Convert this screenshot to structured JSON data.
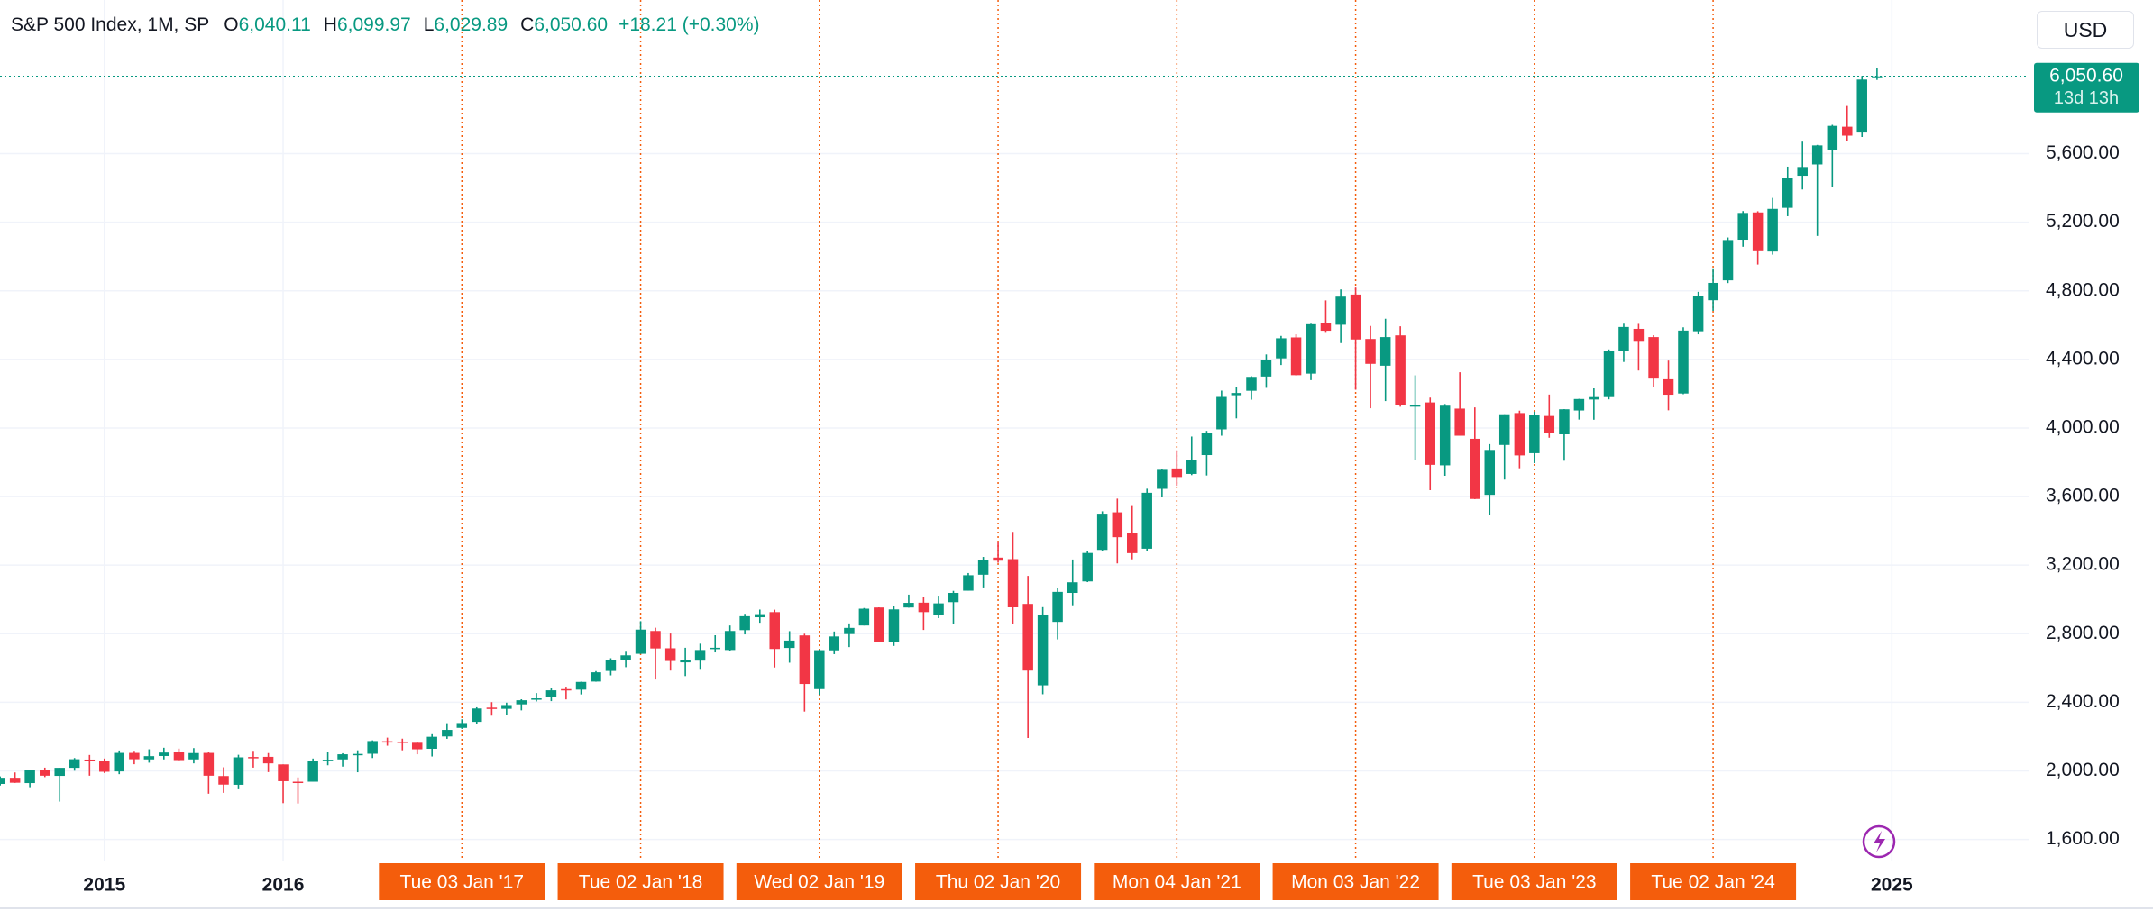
{
  "chart_data": {
    "type": "candlestick",
    "title": "S&P 500 Index, 1M, SP",
    "ohlc_labels": [
      {
        "key": "O",
        "value": "6,040.11"
      },
      {
        "key": "H",
        "value": "6,099.97"
      },
      {
        "key": "L",
        "value": "6,029.89"
      },
      {
        "key": "C",
        "value": "6,050.60"
      }
    ],
    "change": "+18.21 (+0.30%)",
    "currency": "USD",
    "last_price": {
      "value": 6050.6,
      "label": "6,050.60",
      "countdown": "13d 13h"
    },
    "up_color": "#089981",
    "down_color": "#f23645",
    "marker_color": "#f45d0c",
    "grid": true,
    "x": [
      2014.417,
      2014.5,
      2014.583,
      2014.667,
      2014.75,
      2014.833,
      2014.917,
      2015,
      2015.083,
      2015.167,
      2015.25,
      2015.333,
      2015.417,
      2015.5,
      2015.583,
      2015.667,
      2015.75,
      2015.833,
      2015.917,
      2016,
      2016.083,
      2016.167,
      2016.25,
      2016.333,
      2016.417,
      2016.5,
      2016.583,
      2016.667,
      2016.75,
      2016.833,
      2016.917,
      2017,
      2017.083,
      2017.167,
      2017.25,
      2017.333,
      2017.417,
      2017.5,
      2017.583,
      2017.667,
      2017.75,
      2017.833,
      2017.917,
      2018,
      2018.083,
      2018.167,
      2018.25,
      2018.333,
      2018.417,
      2018.5,
      2018.583,
      2018.667,
      2018.75,
      2018.833,
      2018.917,
      2019,
      2019.083,
      2019.167,
      2019.25,
      2019.333,
      2019.417,
      2019.5,
      2019.583,
      2019.667,
      2019.75,
      2019.833,
      2019.917,
      2020,
      2020.083,
      2020.167,
      2020.25,
      2020.333,
      2020.417,
      2020.5,
      2020.583,
      2020.667,
      2020.75,
      2020.833,
      2020.917,
      2021,
      2021.083,
      2021.167,
      2021.25,
      2021.333,
      2021.417,
      2021.5,
      2021.583,
      2021.667,
      2021.75,
      2021.833,
      2021.917,
      2022,
      2022.083,
      2022.167,
      2022.25,
      2022.333,
      2022.417,
      2022.5,
      2022.583,
      2022.667,
      2022.75,
      2022.833,
      2022.917,
      2023,
      2023.083,
      2023.167,
      2023.25,
      2023.333,
      2023.417,
      2023.5,
      2023.583,
      2023.667,
      2023.75,
      2023.833,
      2023.917,
      2024,
      2024.083,
      2024.167,
      2024.25,
      2024.333,
      2024.417,
      2024.5,
      2024.583,
      2024.667,
      2024.75,
      2024.833,
      2024.917
    ],
    "open": [
      1924,
      1960,
      1929,
      2004,
      1971,
      2018,
      2066,
      2058,
      1997,
      2105,
      2067,
      2087,
      2109,
      2067,
      2105,
      1970,
      1919,
      2081,
      2082,
      2038,
      1937,
      1937,
      2057,
      2067,
      2094,
      2100,
      2173,
      2171,
      2164,
      2129,
      2201,
      2251,
      2286,
      2369,
      2362,
      2388,
      2415,
      2431,
      2477,
      2474,
      2521,
      2583,
      2645,
      2683,
      2816,
      2715,
      2633,
      2643,
      2718,
      2705,
      2821,
      2896,
      2926,
      2717,
      2790,
      2477,
      2703,
      2798,
      2848,
      2953,
      2751,
      2953,
      2981,
      2910,
      2984,
      3051,
      3144,
      3244,
      3235,
      2974,
      2499,
      2869,
      3038,
      3105,
      3289,
      3508,
      3385,
      3296,
      3645,
      3764,
      3732,
      3842,
      3992,
      4191,
      4217,
      4300,
      4406,
      4528,
      4317,
      4610,
      4602,
      4778,
      4519,
      4363,
      4540,
      4131,
      4149,
      3782,
      4113,
      3937,
      3610,
      3901,
      4087,
      3853,
      4070,
      3963,
      4102,
      4166,
      4180,
      4450,
      4578,
      4530,
      4284,
      4201,
      4564,
      4745,
      4861,
      5098,
      5257,
      5029,
      5284,
      5471,
      5537,
      5623,
      5757,
      5723,
      6040.11
    ],
    "high": [
      1968,
      1991,
      2005,
      2019,
      2018,
      2075,
      2093,
      2072,
      2119,
      2117,
      2126,
      2135,
      2130,
      2133,
      2113,
      2021,
      2094,
      2117,
      2104,
      2038,
      1962,
      2072,
      2111,
      2103,
      2120,
      2178,
      2194,
      2188,
      2169,
      2214,
      2278,
      2301,
      2371,
      2401,
      2398,
      2418,
      2454,
      2484,
      2491,
      2520,
      2582,
      2657,
      2695,
      2873,
      2835,
      2801,
      2718,
      2742,
      2791,
      2848,
      2916,
      2941,
      2940,
      2815,
      2800,
      2708,
      2813,
      2860,
      2950,
      2954,
      2964,
      3028,
      3014,
      3022,
      3050,
      3154,
      3248,
      3338,
      3394,
      3137,
      2955,
      3068,
      3233,
      3280,
      3514,
      3588,
      3550,
      3646,
      3760,
      3870,
      3950,
      3983,
      4218,
      4238,
      4302,
      4429,
      4537,
      4546,
      4608,
      4744,
      4808,
      4819,
      4595,
      4637,
      4593,
      4307,
      4177,
      4140,
      4325,
      4120,
      3906,
      4080,
      4101,
      4095,
      4195,
      4110,
      4170,
      4231,
      4458,
      4608,
      4607,
      4541,
      4393,
      4587,
      4794,
      4931,
      5111,
      5265,
      5264,
      5342,
      5524,
      5670,
      5651,
      5768,
      5878,
      6053,
      6099.97
    ],
    "low": [
      1915,
      1930,
      1905,
      1964,
      1821,
      2001,
      1972,
      1988,
      1981,
      2039,
      2048,
      2067,
      2056,
      2044,
      1867,
      1872,
      1893,
      2019,
      1993,
      1812,
      1810,
      1937,
      2033,
      2025,
      1992,
      2075,
      2147,
      2120,
      2097,
      2084,
      2187,
      2245,
      2271,
      2322,
      2328,
      2353,
      2405,
      2407,
      2417,
      2446,
      2520,
      2557,
      2605,
      2682,
      2533,
      2585,
      2553,
      2595,
      2691,
      2699,
      2796,
      2864,
      2603,
      2631,
      2346,
      2444,
      2681,
      2722,
      2848,
      2751,
      2729,
      2952,
      2822,
      2891,
      2855,
      3051,
      3070,
      3214,
      2855,
      2192,
      2447,
      2767,
      2966,
      3101,
      3284,
      3210,
      3234,
      3280,
      3595,
      3663,
      3725,
      3723,
      3955,
      4056,
      4165,
      4234,
      4367,
      4306,
      4279,
      4560,
      4495,
      4223,
      4115,
      4157,
      4124,
      3811,
      3637,
      3721,
      3955,
      3585,
      3492,
      3699,
      3765,
      3795,
      3943,
      3809,
      4049,
      4048,
      4167,
      4385,
      4335,
      4238,
      4103,
      4197,
      4546,
      4683,
      4845,
      5057,
      4953,
      5011,
      5235,
      5391,
      5120,
      5403,
      5675,
      5697,
      6029.89
    ],
    "close": [
      1960,
      1931,
      2003,
      1972,
      2018,
      2068,
      2059,
      1995,
      2105,
      2068,
      2086,
      2107,
      2063,
      2104,
      1972,
      1920,
      2079,
      2080,
      2044,
      1940,
      1932,
      2060,
      2065,
      2097,
      2099,
      2174,
      2171,
      2168,
      2126,
      2199,
      2239,
      2279,
      2364,
      2363,
      2384,
      2412,
      2423,
      2470,
      2472,
      2519,
      2575,
      2648,
      2674,
      2824,
      2714,
      2641,
      2648,
      2705,
      2718,
      2816,
      2902,
      2914,
      2711,
      2760,
      2507,
      2704,
      2784,
      2834,
      2946,
      2752,
      2942,
      2980,
      2926,
      2977,
      3038,
      3141,
      3231,
      3226,
      2954,
      2585,
      2912,
      3044,
      3100,
      3271,
      3500,
      3363,
      3270,
      3622,
      3756,
      3714,
      3811,
      3973,
      4181,
      4204,
      4298,
      4395,
      4523,
      4308,
      4605,
      4567,
      4766,
      4516,
      4374,
      4530,
      4132,
      4132,
      3785,
      4130,
      3955,
      3586,
      3872,
      4080,
      3840,
      4077,
      3970,
      4109,
      4169,
      4180,
      4450,
      4589,
      4508,
      4288,
      4194,
      4568,
      4770,
      4846,
      5096,
      5254,
      5036,
      5278,
      5460,
      5522,
      5648,
      5762,
      5705,
      6032,
      6050.6
    ],
    "xlim": [
      2014.416,
      2025.77
    ],
    "xticks": [
      2015,
      2016,
      2025
    ],
    "markers": [
      {
        "value": 2017,
        "label": "Tue 03 Jan '17"
      },
      {
        "value": 2018,
        "label": "Tue 02 Jan '18"
      },
      {
        "value": 2019,
        "label": "Wed 02 Jan '19"
      },
      {
        "value": 2020,
        "label": "Thu 02 Jan '20"
      },
      {
        "value": 2021,
        "label": "Mon 04 Jan '21"
      },
      {
        "value": 2022,
        "label": "Mon 03 Jan '22"
      },
      {
        "value": 2023,
        "label": "Tue 03 Jan '23"
      },
      {
        "value": 2024,
        "label": "Tue 02 Jan '24"
      }
    ],
    "ylim": [
      1472,
      6496
    ],
    "yticks": [
      {
        "value": 1600,
        "label": "1,600.00"
      },
      {
        "value": 2000,
        "label": "2,000.00"
      },
      {
        "value": 2400,
        "label": "2,400.00"
      },
      {
        "value": 2800,
        "label": "2,800.00"
      },
      {
        "value": 3200,
        "label": "3,200.00"
      },
      {
        "value": 3600,
        "label": "3,600.00"
      },
      {
        "value": 4000,
        "label": "4,000.00"
      },
      {
        "value": 4400,
        "label": "4,400.00"
      },
      {
        "value": 4800,
        "label": "4,800.00"
      },
      {
        "value": 5200,
        "label": "5,200.00"
      },
      {
        "value": 5600,
        "label": "5,600.00"
      }
    ]
  }
}
